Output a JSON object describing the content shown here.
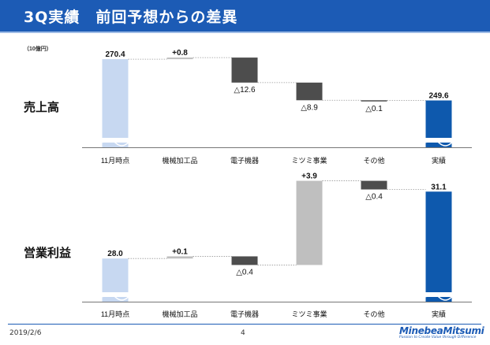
{
  "slide": {
    "title": "3Q実績　前回予想からの差異",
    "unit": "（10億円）",
    "date": "2019/2/6",
    "page": "4",
    "logo": "MinebeaMitsumi",
    "tagline": "Passion to Create Value through Difference"
  },
  "colors": {
    "title_bar": "#1c5bb5",
    "start_bar": "#c7d8f1",
    "end_bar": "#0e59ad",
    "increase_bar": "#bfbfbf",
    "decrease_bar": "#4d4d4d"
  },
  "chart_data": [
    {
      "type": "bar",
      "subtype": "waterfall",
      "title": "売上高",
      "categories": [
        "11月時点",
        "機械加工品",
        "電子機器",
        "ミツミ事業",
        "その他",
        "実績"
      ],
      "values": [
        270.4,
        0.8,
        -12.6,
        -8.9,
        -0.1,
        249.6
      ],
      "labels": [
        "270.4",
        "+0.8",
        "△12.6",
        "△8.9",
        "△0.1",
        "249.6"
      ],
      "axis_break": true
    },
    {
      "type": "bar",
      "subtype": "waterfall",
      "title": "営業利益",
      "categories": [
        "11月時点",
        "機械加工品",
        "電子機器",
        "ミツミ事業",
        "その他",
        "実績"
      ],
      "values": [
        28.0,
        0.1,
        -0.4,
        3.9,
        -0.4,
        31.1
      ],
      "labels": [
        "28.0",
        "+0.1",
        "△0.4",
        "+3.9",
        "△0.4",
        "31.1"
      ],
      "axis_break": true
    }
  ]
}
